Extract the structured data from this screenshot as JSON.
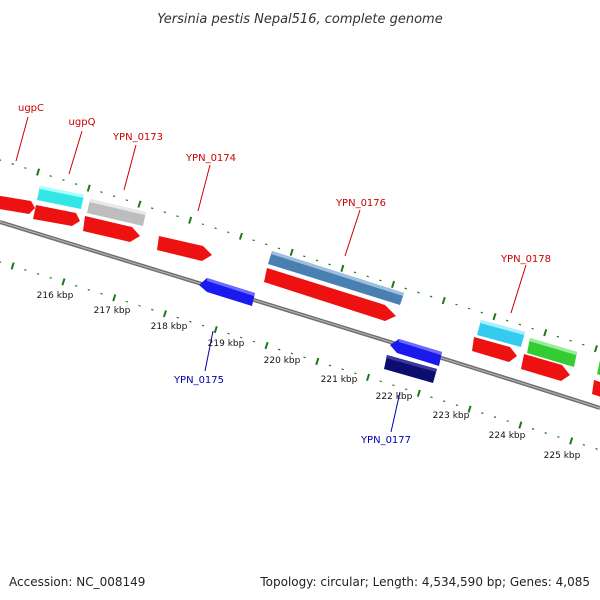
{
  "title": "Yersinia pestis Nepal516, complete genome",
  "footer": {
    "accession": "Accession: NC_008149",
    "summary": "Topology: circular; Length: 4,534,590 bp; Genes: 4,085"
  },
  "ruler": {
    "tick_labels": [
      "216 kbp",
      "217 kbp",
      "218 kbp",
      "219 kbp",
      "220 kbp",
      "221 kbp",
      "222 kbp",
      "223 kbp",
      "224 kbp",
      "225 kbp"
    ]
  },
  "gene_labels": {
    "top": [
      "ugpC",
      "ugpQ",
      "YPN_0173",
      "YPN_0174",
      "YPN_0176",
      "YPN_0178"
    ],
    "bottom": [
      "YPN_0175",
      "YPN_0177"
    ]
  },
  "colors": {
    "backbone": "#808080",
    "tick": "#1a7a1a",
    "forward_cds": "#ee1111",
    "reverse_cds": "#1a1aee",
    "rrna": "#33dddd",
    "trna": "#bbbbbb",
    "other": "#4c7fb0",
    "green_feature": "#33cc33",
    "navy_feature": "#111177",
    "label_top": "#cc0000",
    "label_bottom": "#0000aa"
  },
  "icons": [
    "forward-arrow-icon",
    "reverse-arrow-icon"
  ]
}
